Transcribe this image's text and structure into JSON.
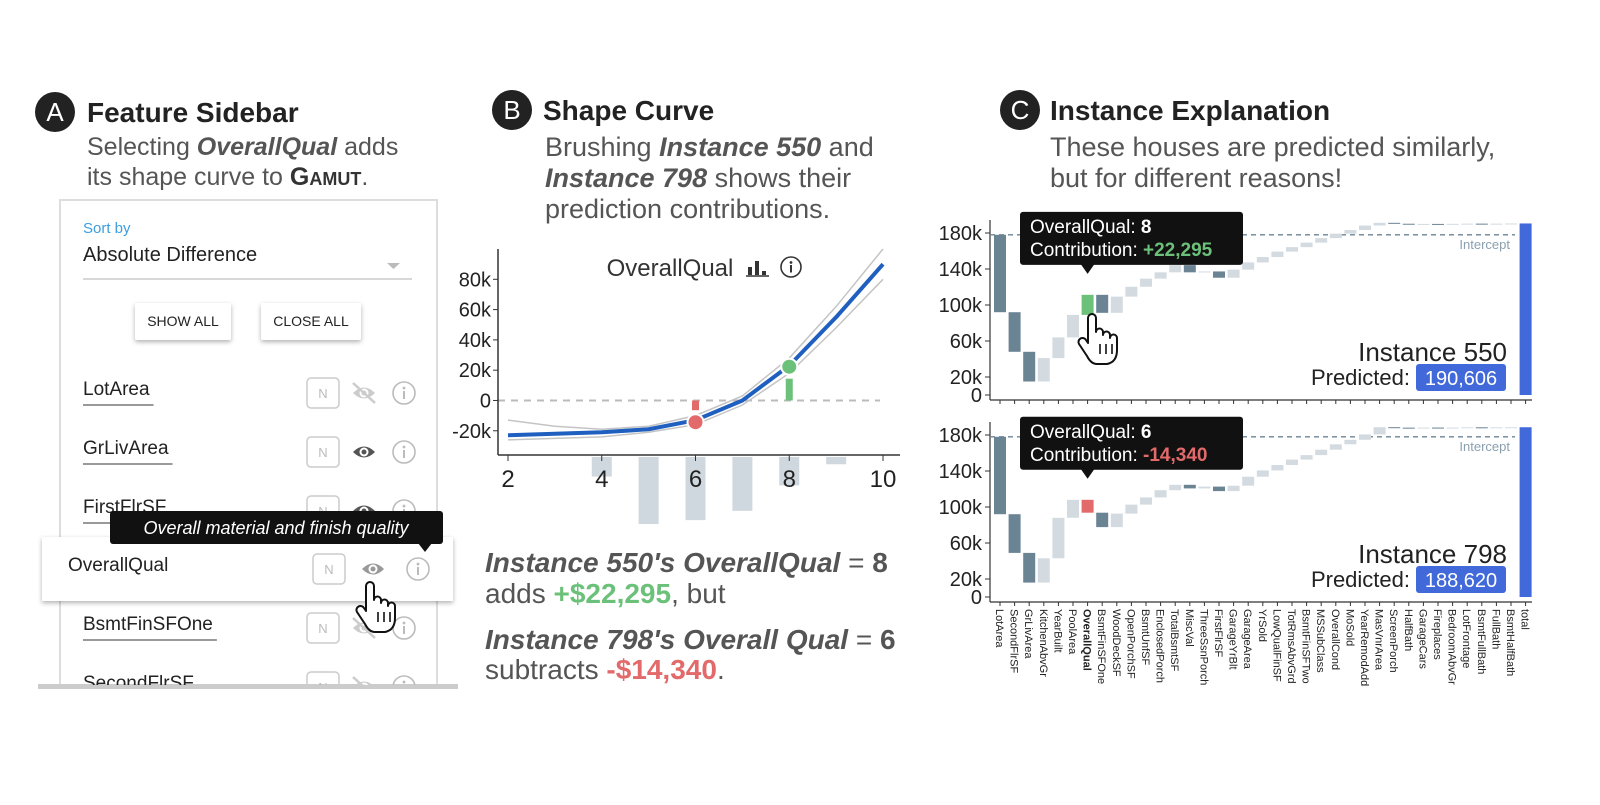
{
  "panel_a": {
    "letter": "A",
    "title": "Feature Sidebar",
    "caption": [
      [
        "Selecting ",
        "OverallQual",
        " adds"
      ],
      [
        "its shape curve to ",
        "Gamut",
        "."
      ]
    ],
    "sort_label": "Sort by",
    "sort_value": "Absolute Difference",
    "buttons": [
      "SHOW ALL",
      "CLOSE ALL"
    ],
    "features": [
      "LotArea",
      "GrLivArea",
      "FirstFlrSF",
      "OverallQual",
      "BsmtFinSFOne",
      "SecondFlrSF"
    ],
    "badge": "N",
    "tooltip": "Overall material and finish quality"
  },
  "panel_b": {
    "letter": "B",
    "title": "Shape Curve",
    "caption": [
      [
        "Brushing ",
        "Instance 550",
        " and"
      ],
      [
        "Instance 798",
        " shows their"
      ],
      [
        "prediction contributions."
      ]
    ],
    "chart_data": {
      "type": "line",
      "title": "OverallQual",
      "x": [
        2,
        3,
        4,
        5,
        6,
        7,
        8,
        9,
        10
      ],
      "series": [
        {
          "color": "#1f5fbf",
          "values": [
            -23000,
            -22000,
            -21000,
            -19000,
            -13000,
            0,
            23000,
            55000,
            90000
          ]
        }
      ],
      "upper": [
        -13000,
        -17000,
        -19000,
        -17000,
        -10000,
        3000,
        28000,
        62000,
        100000
      ],
      "lower": [
        -26000,
        -25000,
        -24000,
        -21000,
        -16000,
        -3000,
        18000,
        48000,
        80000
      ],
      "band_color": "#c4c4c4",
      "histogram": {
        "x": [
          4,
          5,
          6,
          7,
          8,
          9
        ],
        "counts": [
          116,
          397,
          374,
          319,
          168,
          43
        ],
        "color": "#cfd8de"
      },
      "points": [
        {
          "x": 8,
          "value": 22295,
          "color": "#6cc17a"
        },
        {
          "x": 6,
          "value": -14340,
          "color": "#e26a6a"
        }
      ],
      "xlim": [
        2,
        10
      ],
      "xticks": [
        2,
        4,
        6,
        8,
        10
      ],
      "ylim": [
        -36000,
        100000
      ],
      "yticks": [
        {
          "value": -20000,
          "label": "-20k"
        },
        0,
        {
          "value": 20000,
          "label": "20k"
        },
        {
          "value": 40000,
          "label": "40k"
        },
        {
          "value": 60000,
          "label": "60k"
        },
        {
          "value": 80000,
          "label": "80k"
        }
      ]
    },
    "summary": [
      [
        "Instance 550's OverallQual",
        " = ",
        "8"
      ],
      [
        "adds ",
        "+$22,295",
        ", but"
      ],
      [
        "Instance 798's Overall Qual",
        " = ",
        "6"
      ],
      [
        "subtracts ",
        "-$14,340",
        "."
      ]
    ]
  },
  "panel_c": {
    "letter": "C",
    "title": "Instance Explanation",
    "caption": [
      [
        "These houses are predicted similarly,"
      ],
      [
        "but for different reasons!"
      ]
    ],
    "chart_data": {
      "type": "waterfall",
      "categories": [
        "LotArea",
        "SecondFlrSF",
        "GrLivArea",
        "KitchenAbvGr",
        "YearBuilt",
        "PoolArea",
        "OverallQual",
        "BsmtFinSFOne",
        "WoodDeckSF",
        "OpenPorchSF",
        "BsmtUnfSF",
        "EnclosedPorch",
        "TotalBsmtSF",
        "MiscVal",
        "ThreeSsnPorch",
        "FirstFlrSF",
        "GarageYrBlt",
        "GarageArea",
        "YrSold",
        "LowQualFinSF",
        "TotRmsAbvGrd",
        "BsmtFinSFTwo",
        "MSSubClass",
        "OverallCond",
        "MoSold",
        "YearRemodAdd",
        "MasVnrArea",
        "ScreenPorch",
        "HalfBath",
        "GarageCars",
        "Fireplaces",
        "BedroomAbvGr",
        "LotFrontage",
        "BsmtFullBath",
        "FullBath",
        "BsmtHalfBath",
        "total"
      ],
      "intercept": 178000,
      "intercept_label": "Intercept",
      "predicted_label": "Predicted:",
      "highlight": "OverallQual",
      "positive_color": "#d3dbe0",
      "negative_color": "#6b8494",
      "total_color": "#4169d9",
      "ylim": [
        0,
        190000
      ],
      "yticks": [
        0,
        {
          "value": 20000,
          "label": "20k"
        },
        {
          "value": 60000,
          "label": "60k"
        },
        {
          "value": 100000,
          "label": "100k"
        },
        {
          "value": 140000,
          "label": "140k"
        },
        {
          "value": 180000,
          "label": "180k"
        }
      ],
      "series": [
        {
          "name": "Instance 550",
          "color": "#6cc17a",
          "values": [
            -86000,
            -44000,
            -33000,
            26000,
            23000,
            25000,
            22295,
            -20000,
            18000,
            11000,
            9000,
            7000,
            8000,
            -8000,
            1000,
            -7000,
            9000,
            8000,
            6000,
            6000,
            5000,
            5000,
            5000,
            5000,
            4000,
            5000,
            3000,
            -1000,
            -500,
            300,
            -200,
            300,
            200,
            -300,
            300,
            211,
            190606
          ],
          "value_label": "190,606",
          "tooltip": [
            [
              "OverallQual: ",
              "8"
            ],
            [
              "Contribution: ",
              "+22,295"
            ]
          ]
        },
        {
          "name": "Instance 798",
          "color": "#e26a6a",
          "values": [
            -86000,
            -43000,
            -33000,
            27000,
            45000,
            20000,
            -14340,
            -16000,
            15000,
            10000,
            8000,
            8000,
            6000,
            -4000,
            2000,
            -5000,
            6000,
            10000,
            7000,
            6000,
            6000,
            5000,
            6000,
            6000,
            5000,
            6000,
            8000,
            -500,
            -300,
            400,
            -300,
            300,
            300,
            -200,
            200,
            60,
            188620
          ],
          "value_label": "188,620",
          "tooltip": [
            [
              "OverallQual: ",
              "6"
            ],
            [
              "Contribution: ",
              "-14,340"
            ]
          ]
        }
      ]
    }
  }
}
